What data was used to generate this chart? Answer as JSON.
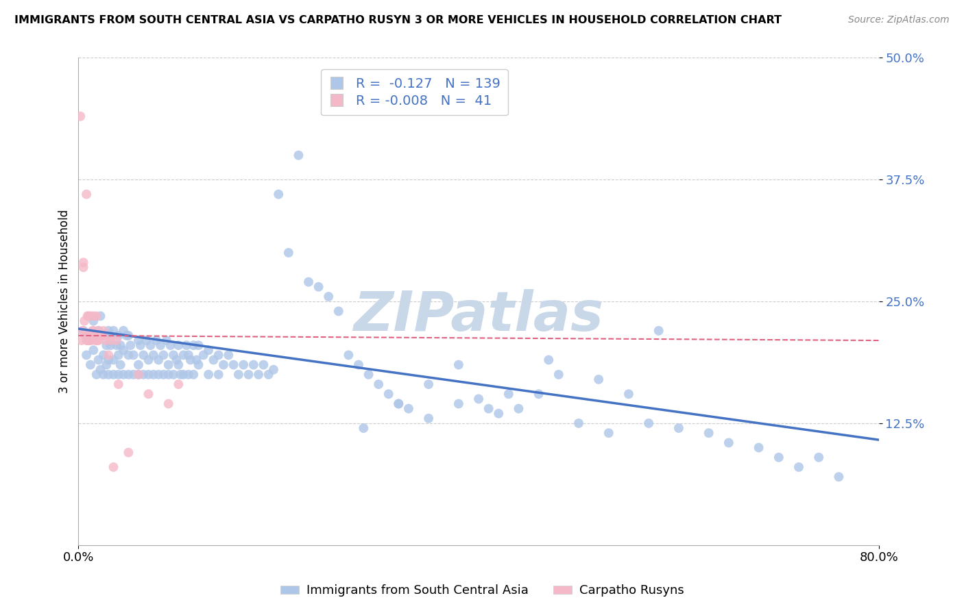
{
  "title": "IMMIGRANTS FROM SOUTH CENTRAL ASIA VS CARPATHO RUSYN 3 OR MORE VEHICLES IN HOUSEHOLD CORRELATION CHART",
  "source": "Source: ZipAtlas.com",
  "ylabel": "3 or more Vehicles in Household",
  "xlim": [
    0.0,
    0.8
  ],
  "ylim": [
    0.0,
    0.5
  ],
  "r_blue": -0.127,
  "n_blue": 139,
  "r_pink": -0.008,
  "n_pink": 41,
  "blue_color": "#aec6e8",
  "pink_color": "#f4b8c8",
  "blue_line_color": "#4472c4",
  "pink_line_color": "#e06080",
  "watermark": "ZIPatlas",
  "watermark_color": "#c8d8e8",
  "legend_label_blue": "Immigrants from South Central Asia",
  "legend_label_pink": "Carpatho Rusyns",
  "blue_scatter_x": [
    0.005,
    0.008,
    0.01,
    0.012,
    0.015,
    0.015,
    0.018,
    0.018,
    0.02,
    0.02,
    0.022,
    0.022,
    0.025,
    0.025,
    0.025,
    0.028,
    0.028,
    0.03,
    0.03,
    0.03,
    0.032,
    0.032,
    0.035,
    0.035,
    0.035,
    0.038,
    0.04,
    0.04,
    0.04,
    0.042,
    0.042,
    0.045,
    0.045,
    0.045,
    0.048,
    0.05,
    0.05,
    0.05,
    0.052,
    0.055,
    0.055,
    0.06,
    0.06,
    0.06,
    0.062,
    0.065,
    0.065,
    0.068,
    0.07,
    0.07,
    0.072,
    0.075,
    0.075,
    0.078,
    0.08,
    0.08,
    0.082,
    0.085,
    0.085,
    0.088,
    0.09,
    0.09,
    0.092,
    0.095,
    0.095,
    0.098,
    0.1,
    0.1,
    0.102,
    0.105,
    0.105,
    0.108,
    0.11,
    0.11,
    0.112,
    0.115,
    0.115,
    0.118,
    0.12,
    0.12,
    0.125,
    0.13,
    0.13,
    0.135,
    0.14,
    0.14,
    0.145,
    0.15,
    0.155,
    0.16,
    0.165,
    0.17,
    0.175,
    0.18,
    0.185,
    0.19,
    0.195,
    0.2,
    0.21,
    0.22,
    0.23,
    0.24,
    0.25,
    0.26,
    0.27,
    0.28,
    0.29,
    0.3,
    0.31,
    0.32,
    0.33,
    0.35,
    0.38,
    0.4,
    0.42,
    0.44,
    0.47,
    0.5,
    0.53,
    0.55,
    0.57,
    0.6,
    0.63,
    0.65,
    0.68,
    0.7,
    0.72,
    0.74,
    0.76,
    0.58,
    0.52,
    0.48,
    0.46,
    0.43,
    0.41,
    0.38,
    0.35,
    0.32,
    0.285
  ],
  "blue_scatter_y": [
    0.22,
    0.195,
    0.21,
    0.185,
    0.2,
    0.23,
    0.175,
    0.215,
    0.19,
    0.22,
    0.18,
    0.235,
    0.195,
    0.215,
    0.175,
    0.205,
    0.185,
    0.19,
    0.22,
    0.175,
    0.205,
    0.215,
    0.19,
    0.22,
    0.175,
    0.205,
    0.195,
    0.215,
    0.175,
    0.205,
    0.185,
    0.2,
    0.22,
    0.175,
    0.215,
    0.195,
    0.215,
    0.175,
    0.205,
    0.195,
    0.175,
    0.21,
    0.185,
    0.175,
    0.205,
    0.195,
    0.175,
    0.21,
    0.19,
    0.175,
    0.205,
    0.195,
    0.175,
    0.21,
    0.19,
    0.175,
    0.205,
    0.195,
    0.175,
    0.21,
    0.185,
    0.175,
    0.205,
    0.195,
    0.175,
    0.19,
    0.205,
    0.185,
    0.175,
    0.195,
    0.175,
    0.205,
    0.195,
    0.175,
    0.19,
    0.205,
    0.175,
    0.19,
    0.205,
    0.185,
    0.195,
    0.2,
    0.175,
    0.19,
    0.175,
    0.195,
    0.185,
    0.195,
    0.185,
    0.175,
    0.185,
    0.175,
    0.185,
    0.175,
    0.185,
    0.175,
    0.18,
    0.36,
    0.3,
    0.4,
    0.27,
    0.265,
    0.255,
    0.24,
    0.195,
    0.185,
    0.175,
    0.165,
    0.155,
    0.145,
    0.14,
    0.13,
    0.145,
    0.15,
    0.135,
    0.14,
    0.19,
    0.125,
    0.115,
    0.155,
    0.125,
    0.12,
    0.115,
    0.105,
    0.1,
    0.09,
    0.08,
    0.09,
    0.07,
    0.22,
    0.17,
    0.175,
    0.155,
    0.155,
    0.14,
    0.185,
    0.165,
    0.145,
    0.12
  ],
  "pink_scatter_x": [
    0.002,
    0.003,
    0.004,
    0.005,
    0.005,
    0.006,
    0.007,
    0.008,
    0.008,
    0.009,
    0.01,
    0.01,
    0.01,
    0.011,
    0.012,
    0.012,
    0.013,
    0.014,
    0.015,
    0.015,
    0.016,
    0.017,
    0.018,
    0.018,
    0.019,
    0.02,
    0.02,
    0.022,
    0.024,
    0.025,
    0.027,
    0.03,
    0.032,
    0.035,
    0.038,
    0.04,
    0.05,
    0.06,
    0.07,
    0.09,
    0.1
  ],
  "pink_scatter_y": [
    0.44,
    0.21,
    0.22,
    0.29,
    0.285,
    0.23,
    0.215,
    0.36,
    0.21,
    0.235,
    0.21,
    0.235,
    0.215,
    0.21,
    0.215,
    0.235,
    0.21,
    0.22,
    0.22,
    0.235,
    0.215,
    0.21,
    0.215,
    0.235,
    0.21,
    0.22,
    0.21,
    0.215,
    0.215,
    0.22,
    0.21,
    0.195,
    0.21,
    0.08,
    0.21,
    0.165,
    0.095,
    0.175,
    0.155,
    0.145,
    0.165
  ],
  "blue_trend_x0": 0.0,
  "blue_trend_x1": 0.8,
  "blue_trend_y0": 0.222,
  "blue_trend_y1": 0.108,
  "pink_trend_x0": 0.0,
  "pink_trend_x1": 0.8,
  "pink_trend_y0": 0.215,
  "pink_trend_y1": 0.21
}
